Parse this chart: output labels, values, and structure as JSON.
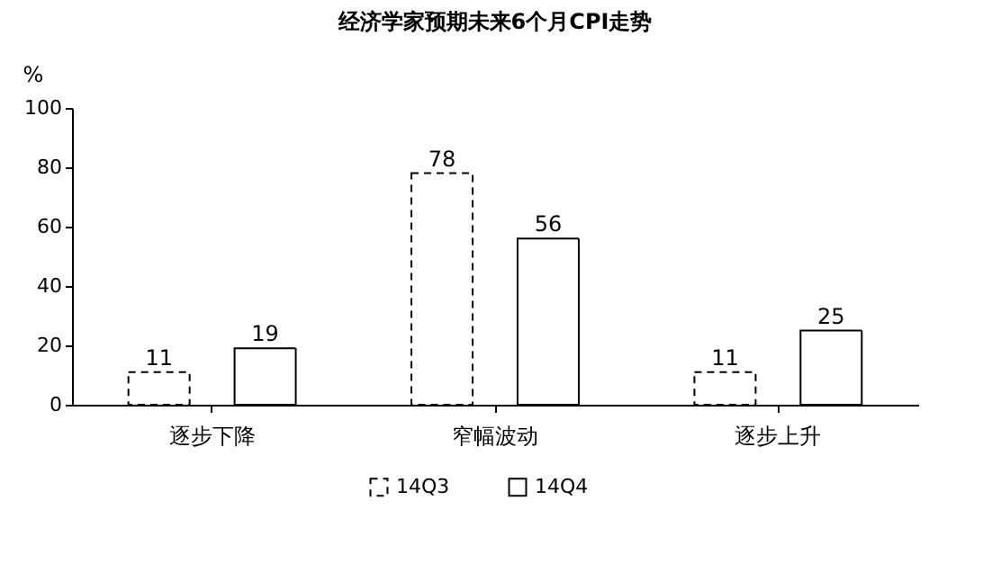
{
  "chart_data": {
    "type": "bar",
    "title": "经济学家预期未来6个月CPI走势",
    "ylabel": "%",
    "categories": [
      "逐步下降",
      "窄幅波动",
      "逐步上升"
    ],
    "series": [
      {
        "name": "14Q3",
        "color": "#ffffff",
        "line_style": "dashed",
        "values": [
          11,
          78,
          11
        ]
      },
      {
        "name": "14Q4",
        "color": "#ffffff",
        "line_style": "solid",
        "values": [
          19,
          56,
          25
        ]
      }
    ],
    "ylim": [
      0,
      100
    ],
    "yticks": [
      0,
      20,
      40,
      60,
      80,
      100
    ],
    "grid": false,
    "legend": "bottom",
    "data_labels": true
  }
}
